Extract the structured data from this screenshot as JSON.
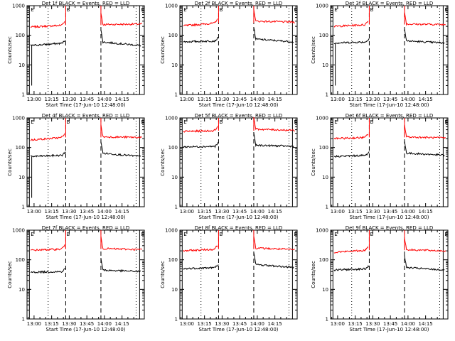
{
  "ylabel": "Counts/sec",
  "xlabel": "Start Time (17-Jun-10 12:48:00)",
  "y_ticks": [
    "1",
    "10",
    "100",
    "1000"
  ],
  "x_ticks": [
    "13:00",
    "13:15",
    "13:30",
    "13:45",
    "14:00",
    "14:15"
  ],
  "marker_labels": [
    "E",
    "B",
    "E"
  ],
  "colors": {
    "events": "#000000",
    "lld": "#ff0000",
    "marker": "#000000"
  },
  "chart_data": [
    {
      "type": "line",
      "title": "Det 1f BLACK = Events, RED = LLD",
      "xlim": [
        -6,
        94
      ],
      "ylim": [
        1,
        1000
      ],
      "y_log": true,
      "event_lines_x": [
        -4,
        90
      ],
      "dashed_lines_x": [
        27,
        57
      ],
      "dotted_lines_x": [
        12,
        87
      ],
      "series": [
        {
          "color": "red",
          "segments": [
            {
              "x": [
                -3,
                26
              ],
              "y": [
                190,
                220
              ]
            },
            {
              "x": [
                57,
                92
              ],
              "y": [
                230,
                240
              ]
            }
          ]
        },
        {
          "color": "black",
          "segments": [
            {
              "x": [
                -3,
                27
              ],
              "y": [
                45,
                55
              ]
            },
            {
              "x": [
                57,
                91
              ],
              "y": [
                60,
                45
              ]
            }
          ]
        }
      ]
    },
    {
      "type": "line",
      "title": "Det 2f BLACK = Events, RED = LLD",
      "xlim": [
        -6,
        94
      ],
      "ylim": [
        1,
        1000
      ],
      "y_log": true,
      "event_lines_x": [
        -4,
        90
      ],
      "dashed_lines_x": [
        27,
        57
      ],
      "dotted_lines_x": [
        12,
        87
      ],
      "series": [
        {
          "color": "red",
          "segments": [
            {
              "x": [
                -3,
                26
              ],
              "y": [
                210,
                260
              ]
            },
            {
              "x": [
                57,
                92
              ],
              "y": [
                300,
                280
              ]
            }
          ]
        },
        {
          "color": "black",
          "segments": [
            {
              "x": [
                -3,
                27
              ],
              "y": [
                60,
                65
              ]
            },
            {
              "x": [
                57,
                91
              ],
              "y": [
                75,
                60
              ]
            }
          ]
        }
      ]
    },
    {
      "type": "line",
      "title": "Det 3f BLACK = Events, RED = LLD",
      "xlim": [
        -6,
        94
      ],
      "ylim": [
        1,
        1000
      ],
      "y_log": true,
      "event_lines_x": [
        -4,
        90
      ],
      "dashed_lines_x": [
        27,
        57
      ],
      "dotted_lines_x": [
        12,
        87
      ],
      "series": [
        {
          "color": "red",
          "segments": [
            {
              "x": [
                -3,
                26
              ],
              "y": [
                200,
                230
              ]
            },
            {
              "x": [
                57,
                92
              ],
              "y": [
                240,
                230
              ]
            }
          ]
        },
        {
          "color": "black",
          "segments": [
            {
              "x": [
                -3,
                27
              ],
              "y": [
                55,
                60
              ]
            },
            {
              "x": [
                57,
                91
              ],
              "y": [
                65,
                55
              ]
            }
          ]
        }
      ]
    },
    {
      "type": "line",
      "title": "Det 4f BLACK = Events, RED = LLD",
      "xlim": [
        -6,
        94
      ],
      "ylim": [
        1,
        1000
      ],
      "y_log": true,
      "event_lines_x": [
        -4,
        90
      ],
      "dashed_lines_x": [
        27,
        57
      ],
      "dotted_lines_x": [
        12,
        87
      ],
      "series": [
        {
          "color": "red",
          "segments": [
            {
              "x": [
                -3,
                26
              ],
              "y": [
                180,
                220
              ]
            },
            {
              "x": [
                57,
                92
              ],
              "y": [
                230,
                220
              ]
            }
          ]
        },
        {
          "color": "black",
          "segments": [
            {
              "x": [
                -3,
                27
              ],
              "y": [
                50,
                55
              ]
            },
            {
              "x": [
                57,
                91
              ],
              "y": [
                65,
                50
              ]
            }
          ]
        }
      ]
    },
    {
      "type": "line",
      "title": "Det 5f BLACK = Events, RED = LLD",
      "xlim": [
        -6,
        94
      ],
      "ylim": [
        1,
        1000
      ],
      "y_log": true,
      "event_lines_x": [
        -4,
        90
      ],
      "dashed_lines_x": [
        27,
        57
      ],
      "dotted_lines_x": [
        12,
        87
      ],
      "series": [
        {
          "color": "red",
          "segments": [
            {
              "x": [
                -3,
                26
              ],
              "y": [
                350,
                370
              ]
            },
            {
              "x": [
                57,
                92
              ],
              "y": [
                420,
                380
              ]
            }
          ]
        },
        {
          "color": "black",
          "segments": [
            {
              "x": [
                -3,
                27
              ],
              "y": [
                105,
                110
              ]
            },
            {
              "x": [
                57,
                91
              ],
              "y": [
                120,
                110
              ]
            }
          ]
        }
      ]
    },
    {
      "type": "line",
      "title": "Det 6f BLACK = Events, RED = LLD",
      "xlim": [
        -6,
        94
      ],
      "ylim": [
        1,
        1000
      ],
      "y_log": true,
      "event_lines_x": [
        -4,
        90
      ],
      "dashed_lines_x": [
        27,
        57
      ],
      "dotted_lines_x": [
        12,
        87
      ],
      "series": [
        {
          "color": "red",
          "segments": [
            {
              "x": [
                -3,
                26
              ],
              "y": [
                200,
                220
              ]
            },
            {
              "x": [
                57,
                92
              ],
              "y": [
                230,
                210
              ]
            }
          ]
        },
        {
          "color": "black",
          "segments": [
            {
              "x": [
                -3,
                27
              ],
              "y": [
                50,
                55
              ]
            },
            {
              "x": [
                57,
                91
              ],
              "y": [
                65,
                55
              ]
            }
          ]
        }
      ]
    },
    {
      "type": "line",
      "title": "Det 7f BLACK = Events, RED = LLD",
      "xlim": [
        -6,
        94
      ],
      "ylim": [
        1,
        1000
      ],
      "y_log": true,
      "event_lines_x": [
        -4,
        90
      ],
      "dashed_lines_x": [
        27,
        57
      ],
      "dotted_lines_x": [
        12,
        87
      ],
      "series": [
        {
          "color": "red",
          "segments": [
            {
              "x": [
                -3,
                26
              ],
              "y": [
                210,
                230
              ]
            },
            {
              "x": [
                57,
                92
              ],
              "y": [
                240,
                220
              ]
            }
          ]
        },
        {
          "color": "black",
          "segments": [
            {
              "x": [
                -3,
                27
              ],
              "y": [
                38,
                40
              ]
            },
            {
              "x": [
                57,
                91
              ],
              "y": [
                45,
                40
              ]
            }
          ]
        }
      ]
    },
    {
      "type": "line",
      "title": "Det 8f BLACK = Events, RED = LLD",
      "xlim": [
        -6,
        94
      ],
      "ylim": [
        1,
        1000
      ],
      "y_log": true,
      "event_lines_x": [
        -4,
        90
      ],
      "dashed_lines_x": [
        27,
        57
      ],
      "dotted_lines_x": [
        12,
        87
      ],
      "series": [
        {
          "color": "red",
          "segments": [
            {
              "x": [
                -3,
                26
              ],
              "y": [
                200,
                230
              ]
            },
            {
              "x": [
                57,
                92
              ],
              "y": [
                250,
                220
              ]
            }
          ]
        },
        {
          "color": "black",
          "segments": [
            {
              "x": [
                -3,
                27
              ],
              "y": [
                50,
                55
              ]
            },
            {
              "x": [
                57,
                91
              ],
              "y": [
                70,
                55
              ]
            }
          ]
        }
      ]
    },
    {
      "type": "line",
      "title": "Det 9f BLACK = Events, RED = LLD",
      "xlim": [
        -6,
        94
      ],
      "ylim": [
        1,
        1000
      ],
      "y_log": true,
      "event_lines_x": [
        -4,
        90
      ],
      "dashed_lines_x": [
        27,
        57
      ],
      "dotted_lines_x": [
        12,
        87
      ],
      "series": [
        {
          "color": "red",
          "segments": [
            {
              "x": [
                -3,
                26
              ],
              "y": [
                180,
                210
              ]
            },
            {
              "x": [
                57,
                92
              ],
              "y": [
                220,
                200
              ]
            }
          ]
        },
        {
          "color": "black",
          "segments": [
            {
              "x": [
                -3,
                27
              ],
              "y": [
                45,
                50
              ]
            },
            {
              "x": [
                57,
                91
              ],
              "y": [
                55,
                45
              ]
            }
          ]
        }
      ]
    }
  ]
}
